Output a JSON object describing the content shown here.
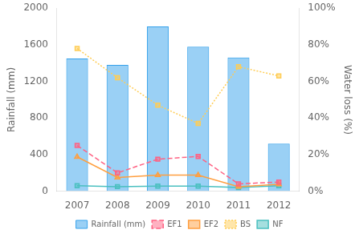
{
  "chart_data": {
    "type": "bar",
    "categories": [
      "2007",
      "2008",
      "2009",
      "2010",
      "2011",
      "2012"
    ],
    "series": [
      {
        "name": "Rainfall (mm)",
        "type": "bar",
        "values": [
          1450,
          1380,
          1800,
          1580,
          1460,
          520
        ]
      },
      {
        "name": "EF1",
        "type": "line",
        "marker": "square",
        "line_style": "dashed",
        "values": [
          500,
          200,
          350,
          380,
          80,
          100
        ]
      },
      {
        "name": "EF2",
        "type": "line",
        "marker": "triangle",
        "line_style": "solid",
        "values": [
          375,
          150,
          175,
          175,
          50,
          75
        ]
      },
      {
        "name": "BS",
        "type": "line",
        "marker": "square",
        "line_style": "dotted",
        "axis": "y2",
        "values": [
          0.78,
          0.62,
          0.47,
          0.37,
          0.68,
          0.63
        ]
      },
      {
        "name": "NF",
        "type": "line",
        "marker": "square",
        "line_style": "solid",
        "values": [
          60,
          50,
          55,
          55,
          40,
          60
        ]
      }
    ],
    "ylabel": "Rainfall (mm)",
    "y2label": "Water loss (%)",
    "ylim": [
      0,
      2000
    ],
    "yticks": [
      0,
      400,
      800,
      1200,
      1600,
      2000
    ],
    "y2lim": [
      0,
      1.0
    ],
    "y2ticks": [
      {
        "value": 0.0,
        "label": "0%"
      },
      {
        "value": 0.2,
        "label": "20%"
      },
      {
        "value": 0.4,
        "label": "40%"
      },
      {
        "value": 0.6,
        "label": "60%"
      },
      {
        "value": 0.8,
        "label": "80%"
      },
      {
        "value": 1.0,
        "label": "100%"
      }
    ],
    "grid": false,
    "legend": "bottom"
  }
}
